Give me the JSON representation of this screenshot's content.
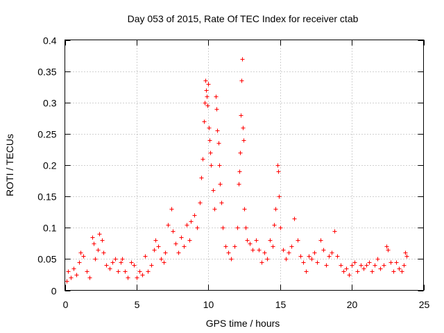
{
  "chart_data": {
    "type": "scatter",
    "title": "Day 053 of 2015, Rate Of TEC Index for receiver ctab",
    "xlabel": "GPS time / hours",
    "ylabel": "ROTI / TECUs",
    "xlim": [
      0,
      25
    ],
    "ylim": [
      0,
      0.4
    ],
    "xticks": [
      0,
      5,
      10,
      15,
      20,
      25
    ],
    "xtick_labels": [
      "0",
      "5",
      "10",
      "15",
      "20",
      "25"
    ],
    "yticks": [
      0,
      0.05,
      0.1,
      0.15,
      0.2,
      0.25,
      0.3,
      0.35,
      0.4
    ],
    "ytick_labels": [
      "0",
      "0.05",
      "0.1",
      "0.15",
      "0.2",
      "0.25",
      "0.3",
      "0.35",
      "0.4"
    ],
    "grid": true,
    "marker": "+",
    "color": "#ff0000",
    "series": [
      {
        "name": "ROTI",
        "points": [
          [
            0.1,
            0.015
          ],
          [
            0.2,
            0.03
          ],
          [
            0.4,
            0.02
          ],
          [
            0.6,
            0.035
          ],
          [
            0.8,
            0.025
          ],
          [
            1.0,
            0.045
          ],
          [
            1.1,
            0.06
          ],
          [
            1.3,
            0.055
          ],
          [
            1.5,
            0.03
          ],
          [
            1.7,
            0.02
          ],
          [
            1.9,
            0.085
          ],
          [
            2.0,
            0.075
          ],
          [
            2.1,
            0.05
          ],
          [
            2.3,
            0.065
          ],
          [
            2.4,
            0.09
          ],
          [
            2.6,
            0.08
          ],
          [
            2.7,
            0.06
          ],
          [
            2.9,
            0.04
          ],
          [
            3.1,
            0.035
          ],
          [
            3.3,
            0.045
          ],
          [
            3.5,
            0.05
          ],
          [
            3.7,
            0.03
          ],
          [
            3.9,
            0.045
          ],
          [
            4.0,
            0.05
          ],
          [
            4.2,
            0.03
          ],
          [
            4.4,
            0.02
          ],
          [
            4.6,
            0.045
          ],
          [
            4.8,
            0.04
          ],
          [
            5.0,
            0.02
          ],
          [
            5.2,
            0.03
          ],
          [
            5.4,
            0.025
          ],
          [
            5.6,
            0.055
          ],
          [
            5.8,
            0.03
          ],
          [
            6.0,
            0.04
          ],
          [
            6.2,
            0.065
          ],
          [
            6.3,
            0.08
          ],
          [
            6.5,
            0.07
          ],
          [
            6.7,
            0.05
          ],
          [
            6.9,
            0.045
          ],
          [
            7.0,
            0.06
          ],
          [
            7.2,
            0.105
          ],
          [
            7.4,
            0.13
          ],
          [
            7.5,
            0.095
          ],
          [
            7.7,
            0.075
          ],
          [
            7.9,
            0.06
          ],
          [
            8.1,
            0.085
          ],
          [
            8.3,
            0.07
          ],
          [
            8.5,
            0.105
          ],
          [
            8.7,
            0.08
          ],
          [
            8.8,
            0.11
          ],
          [
            9.0,
            0.12
          ],
          [
            9.2,
            0.1
          ],
          [
            9.4,
            0.14
          ],
          [
            9.5,
            0.18
          ],
          [
            9.6,
            0.21
          ],
          [
            9.7,
            0.27
          ],
          [
            9.75,
            0.3
          ],
          [
            9.8,
            0.335
          ],
          [
            9.85,
            0.32
          ],
          [
            9.9,
            0.31
          ],
          [
            9.95,
            0.295
          ],
          [
            10.0,
            0.33
          ],
          [
            10.05,
            0.26
          ],
          [
            10.1,
            0.24
          ],
          [
            10.15,
            0.22
          ],
          [
            10.2,
            0.2
          ],
          [
            10.3,
            0.16
          ],
          [
            10.4,
            0.13
          ],
          [
            10.5,
            0.31
          ],
          [
            10.55,
            0.29
          ],
          [
            10.6,
            0.255
          ],
          [
            10.7,
            0.235
          ],
          [
            10.75,
            0.2
          ],
          [
            10.8,
            0.17
          ],
          [
            10.9,
            0.14
          ],
          [
            11.0,
            0.1
          ],
          [
            11.2,
            0.07
          ],
          [
            11.4,
            0.06
          ],
          [
            11.6,
            0.05
          ],
          [
            11.8,
            0.07
          ],
          [
            12.0,
            0.1
          ],
          [
            12.1,
            0.17
          ],
          [
            12.15,
            0.19
          ],
          [
            12.2,
            0.22
          ],
          [
            12.25,
            0.28
          ],
          [
            12.3,
            0.335
          ],
          [
            12.35,
            0.37
          ],
          [
            12.4,
            0.26
          ],
          [
            12.45,
            0.24
          ],
          [
            12.5,
            0.13
          ],
          [
            12.6,
            0.1
          ],
          [
            12.7,
            0.08
          ],
          [
            12.9,
            0.075
          ],
          [
            13.1,
            0.065
          ],
          [
            13.3,
            0.08
          ],
          [
            13.5,
            0.065
          ],
          [
            13.7,
            0.045
          ],
          [
            13.9,
            0.06
          ],
          [
            14.1,
            0.05
          ],
          [
            14.3,
            0.08
          ],
          [
            14.5,
            0.07
          ],
          [
            14.6,
            0.105
          ],
          [
            14.7,
            0.13
          ],
          [
            14.8,
            0.2
          ],
          [
            14.85,
            0.19
          ],
          [
            14.9,
            0.15
          ],
          [
            15.0,
            0.1
          ],
          [
            15.2,
            0.065
          ],
          [
            15.4,
            0.05
          ],
          [
            15.6,
            0.06
          ],
          [
            15.8,
            0.07
          ],
          [
            16.0,
            0.115
          ],
          [
            16.2,
            0.08
          ],
          [
            16.4,
            0.055
          ],
          [
            16.6,
            0.045
          ],
          [
            16.8,
            0.03
          ],
          [
            17.0,
            0.055
          ],
          [
            17.2,
            0.05
          ],
          [
            17.4,
            0.06
          ],
          [
            17.6,
            0.045
          ],
          [
            17.8,
            0.08
          ],
          [
            18.0,
            0.065
          ],
          [
            18.2,
            0.04
          ],
          [
            18.4,
            0.055
          ],
          [
            18.6,
            0.06
          ],
          [
            18.8,
            0.095
          ],
          [
            19.0,
            0.055
          ],
          [
            19.2,
            0.04
          ],
          [
            19.4,
            0.03
          ],
          [
            19.6,
            0.035
          ],
          [
            19.8,
            0.025
          ],
          [
            20.0,
            0.04
          ],
          [
            20.2,
            0.045
          ],
          [
            20.4,
            0.03
          ],
          [
            20.6,
            0.04
          ],
          [
            20.8,
            0.035
          ],
          [
            21.0,
            0.04
          ],
          [
            21.2,
            0.045
          ],
          [
            21.4,
            0.03
          ],
          [
            21.6,
            0.04
          ],
          [
            21.8,
            0.05
          ],
          [
            22.0,
            0.035
          ],
          [
            22.2,
            0.04
          ],
          [
            22.4,
            0.07
          ],
          [
            22.5,
            0.065
          ],
          [
            22.7,
            0.045
          ],
          [
            22.9,
            0.03
          ],
          [
            23.1,
            0.045
          ],
          [
            23.3,
            0.035
          ],
          [
            23.5,
            0.03
          ],
          [
            23.6,
            0.04
          ],
          [
            23.7,
            0.06
          ],
          [
            23.8,
            0.055
          ]
        ]
      }
    ]
  }
}
